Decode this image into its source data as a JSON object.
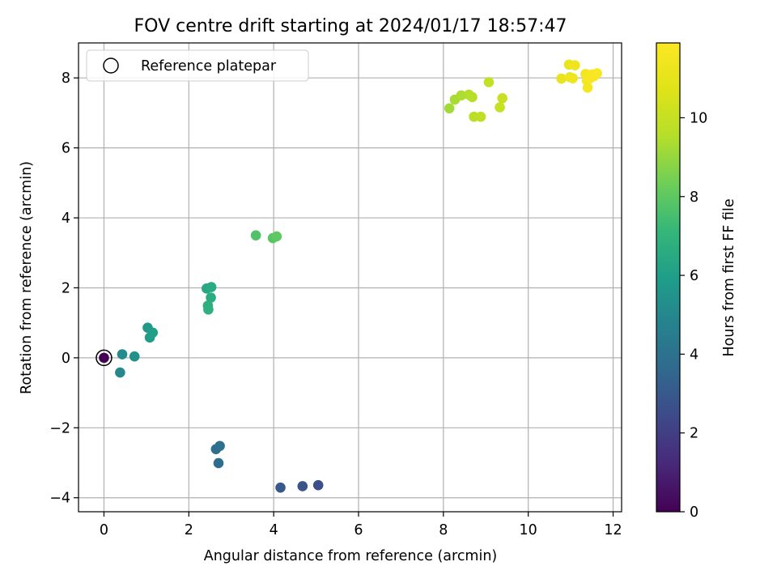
{
  "chart_data": {
    "type": "scatter",
    "title": "FOV centre drift starting at 2024/01/17 18:57:47",
    "xlabel": "Angular distance from reference (arcmin)",
    "ylabel": "Rotation from reference (arcmin)",
    "xlim": [
      -0.6,
      12.2
    ],
    "ylim": [
      -4.4,
      9.0
    ],
    "xticks": [
      0,
      2,
      4,
      6,
      8,
      10,
      12
    ],
    "yticks": [
      -4,
      -2,
      0,
      2,
      4,
      6,
      8
    ],
    "grid": true,
    "legend": {
      "position": "top-left",
      "entries": [
        "Reference platepar"
      ]
    },
    "colorbar": {
      "label": "Hours from first FF file",
      "range": [
        0,
        11.9
      ],
      "ticks": [
        0,
        2,
        4,
        6,
        8,
        10
      ],
      "colormap": "viridis"
    },
    "reference_point": {
      "x": 0,
      "y": 0,
      "t": 0
    },
    "points": [
      {
        "x": 5.05,
        "y": -3.64,
        "t": 2.6
      },
      {
        "x": 4.68,
        "y": -3.67,
        "t": 2.8
      },
      {
        "x": 4.16,
        "y": -3.71,
        "t": 3.0
      },
      {
        "x": 2.7,
        "y": -3.01,
        "t": 3.8
      },
      {
        "x": 2.64,
        "y": -2.61,
        "t": 3.9
      },
      {
        "x": 2.73,
        "y": -2.52,
        "t": 4.0
      },
      {
        "x": 0.38,
        "y": -0.42,
        "t": 5.0
      },
      {
        "x": 0.43,
        "y": 0.1,
        "t": 5.2
      },
      {
        "x": 0.72,
        "y": 0.04,
        "t": 5.4
      },
      {
        "x": 1.03,
        "y": 0.86,
        "t": 5.7
      },
      {
        "x": 1.08,
        "y": 0.58,
        "t": 5.9
      },
      {
        "x": 1.15,
        "y": 0.72,
        "t": 6.0
      },
      {
        "x": 2.42,
        "y": 1.98,
        "t": 6.4
      },
      {
        "x": 2.53,
        "y": 2.02,
        "t": 6.5
      },
      {
        "x": 2.52,
        "y": 1.72,
        "t": 6.6
      },
      {
        "x": 2.45,
        "y": 1.49,
        "t": 6.7
      },
      {
        "x": 2.46,
        "y": 1.38,
        "t": 6.8
      },
      {
        "x": 3.58,
        "y": 3.5,
        "t": 7.7
      },
      {
        "x": 3.98,
        "y": 3.42,
        "t": 7.9
      },
      {
        "x": 4.07,
        "y": 3.47,
        "t": 8.0
      },
      {
        "x": 8.14,
        "y": 7.13,
        "t": 9.2
      },
      {
        "x": 8.27,
        "y": 7.38,
        "t": 9.3
      },
      {
        "x": 8.42,
        "y": 7.5,
        "t": 9.4
      },
      {
        "x": 8.6,
        "y": 7.52,
        "t": 9.5
      },
      {
        "x": 8.68,
        "y": 7.45,
        "t": 9.6
      },
      {
        "x": 8.72,
        "y": 6.89,
        "t": 9.7
      },
      {
        "x": 8.88,
        "y": 6.89,
        "t": 9.8
      },
      {
        "x": 9.07,
        "y": 7.88,
        "t": 9.9
      },
      {
        "x": 9.33,
        "y": 7.16,
        "t": 10.0
      },
      {
        "x": 9.39,
        "y": 7.42,
        "t": 10.1
      },
      {
        "x": 10.78,
        "y": 7.98,
        "t": 11.1
      },
      {
        "x": 10.96,
        "y": 8.38,
        "t": 11.2
      },
      {
        "x": 10.98,
        "y": 8.02,
        "t": 11.25
      },
      {
        "x": 11.05,
        "y": 7.99,
        "t": 11.3
      },
      {
        "x": 11.1,
        "y": 8.36,
        "t": 11.35
      },
      {
        "x": 11.35,
        "y": 8.11,
        "t": 11.5
      },
      {
        "x": 11.38,
        "y": 7.93,
        "t": 11.55
      },
      {
        "x": 11.4,
        "y": 7.72,
        "t": 11.6
      },
      {
        "x": 11.45,
        "y": 7.98,
        "t": 11.65
      },
      {
        "x": 11.5,
        "y": 8.1,
        "t": 11.7
      },
      {
        "x": 11.55,
        "y": 8.05,
        "t": 11.75
      },
      {
        "x": 11.62,
        "y": 8.13,
        "t": 11.8
      }
    ]
  }
}
